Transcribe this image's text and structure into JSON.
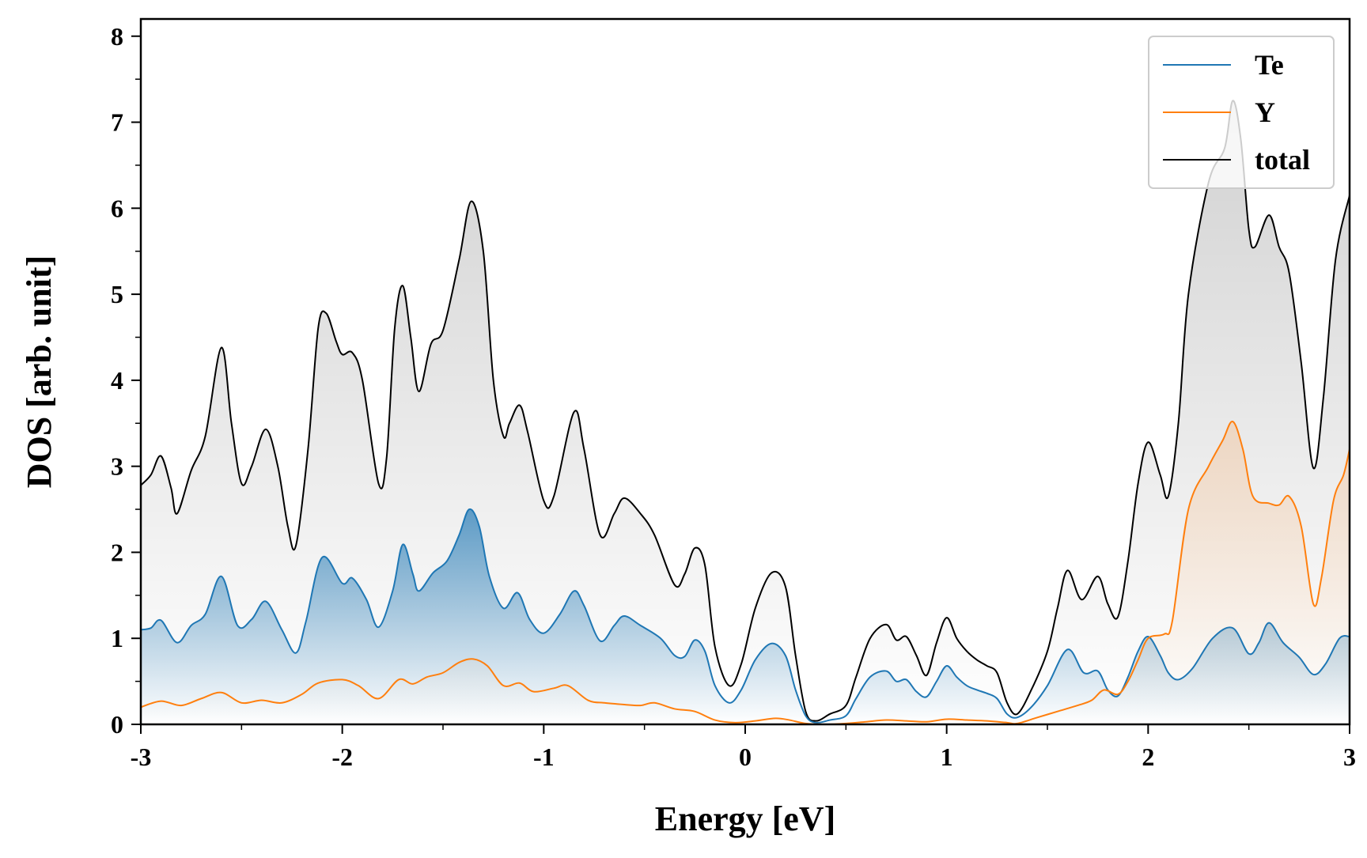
{
  "chart_data": {
    "type": "area",
    "xlabel": "Energy [eV]",
    "ylabel": "DOS [arb. unit]",
    "xlim": [
      -3,
      3
    ],
    "ylim": [
      0,
      8.2
    ],
    "x_ticks": [
      "-3",
      "-2",
      "-1",
      "0",
      "1",
      "2",
      "3"
    ],
    "y_ticks": [
      "0",
      "1",
      "2",
      "3",
      "4",
      "5",
      "6",
      "7",
      "8"
    ],
    "grid": false,
    "legend_position": "top-right",
    "series": [
      {
        "name": "Te",
        "color": "#1f77b4",
        "fill": "gradient",
        "points": [
          [
            -3.0,
            1.1
          ],
          [
            -2.95,
            1.12
          ],
          [
            -2.9,
            1.21
          ],
          [
            -2.82,
            0.95
          ],
          [
            -2.75,
            1.15
          ],
          [
            -2.68,
            1.28
          ],
          [
            -2.6,
            1.72
          ],
          [
            -2.52,
            1.15
          ],
          [
            -2.45,
            1.22
          ],
          [
            -2.38,
            1.43
          ],
          [
            -2.3,
            1.1
          ],
          [
            -2.23,
            0.83
          ],
          [
            -2.18,
            1.2
          ],
          [
            -2.1,
            1.94
          ],
          [
            -2.0,
            1.64
          ],
          [
            -1.95,
            1.7
          ],
          [
            -1.88,
            1.45
          ],
          [
            -1.82,
            1.13
          ],
          [
            -1.75,
            1.55
          ],
          [
            -1.7,
            2.09
          ],
          [
            -1.65,
            1.75
          ],
          [
            -1.62,
            1.55
          ],
          [
            -1.55,
            1.76
          ],
          [
            -1.48,
            1.9
          ],
          [
            -1.42,
            2.2
          ],
          [
            -1.37,
            2.5
          ],
          [
            -1.32,
            2.3
          ],
          [
            -1.27,
            1.72
          ],
          [
            -1.2,
            1.35
          ],
          [
            -1.13,
            1.53
          ],
          [
            -1.07,
            1.22
          ],
          [
            -1.0,
            1.06
          ],
          [
            -0.92,
            1.28
          ],
          [
            -0.85,
            1.55
          ],
          [
            -0.8,
            1.38
          ],
          [
            -0.72,
            0.97
          ],
          [
            -0.65,
            1.15
          ],
          [
            -0.6,
            1.26
          ],
          [
            -0.52,
            1.15
          ],
          [
            -0.42,
            1.0
          ],
          [
            -0.35,
            0.8
          ],
          [
            -0.3,
            0.79
          ],
          [
            -0.25,
            0.98
          ],
          [
            -0.2,
            0.85
          ],
          [
            -0.15,
            0.45
          ],
          [
            -0.08,
            0.25
          ],
          [
            -0.02,
            0.4
          ],
          [
            0.05,
            0.75
          ],
          [
            0.13,
            0.94
          ],
          [
            0.2,
            0.8
          ],
          [
            0.25,
            0.4
          ],
          [
            0.3,
            0.1
          ],
          [
            0.35,
            0.02
          ],
          [
            0.42,
            0.05
          ],
          [
            0.5,
            0.1
          ],
          [
            0.55,
            0.3
          ],
          [
            0.62,
            0.55
          ],
          [
            0.7,
            0.62
          ],
          [
            0.75,
            0.5
          ],
          [
            0.8,
            0.52
          ],
          [
            0.85,
            0.38
          ],
          [
            0.9,
            0.32
          ],
          [
            0.95,
            0.5
          ],
          [
            1.0,
            0.68
          ],
          [
            1.05,
            0.55
          ],
          [
            1.1,
            0.45
          ],
          [
            1.15,
            0.4
          ],
          [
            1.2,
            0.36
          ],
          [
            1.25,
            0.3
          ],
          [
            1.3,
            0.12
          ],
          [
            1.35,
            0.08
          ],
          [
            1.42,
            0.2
          ],
          [
            1.5,
            0.45
          ],
          [
            1.6,
            0.87
          ],
          [
            1.68,
            0.6
          ],
          [
            1.75,
            0.62
          ],
          [
            1.8,
            0.4
          ],
          [
            1.85,
            0.33
          ],
          [
            1.9,
            0.55
          ],
          [
            1.95,
            0.85
          ],
          [
            2.0,
            1.02
          ],
          [
            2.06,
            0.8
          ],
          [
            2.1,
            0.6
          ],
          [
            2.15,
            0.52
          ],
          [
            2.22,
            0.65
          ],
          [
            2.32,
            1.0
          ],
          [
            2.42,
            1.12
          ],
          [
            2.5,
            0.82
          ],
          [
            2.55,
            0.95
          ],
          [
            2.6,
            1.18
          ],
          [
            2.67,
            0.95
          ],
          [
            2.75,
            0.78
          ],
          [
            2.82,
            0.58
          ],
          [
            2.88,
            0.7
          ],
          [
            2.95,
            1.0
          ],
          [
            3.0,
            1.02
          ]
        ]
      },
      {
        "name": "Y",
        "color": "#ff7f0e",
        "fill": "gradient",
        "points": [
          [
            -3.0,
            0.2
          ],
          [
            -2.9,
            0.27
          ],
          [
            -2.8,
            0.22
          ],
          [
            -2.7,
            0.3
          ],
          [
            -2.6,
            0.37
          ],
          [
            -2.5,
            0.25
          ],
          [
            -2.4,
            0.28
          ],
          [
            -2.3,
            0.25
          ],
          [
            -2.2,
            0.35
          ],
          [
            -2.12,
            0.48
          ],
          [
            -2.0,
            0.52
          ],
          [
            -1.92,
            0.45
          ],
          [
            -1.82,
            0.3
          ],
          [
            -1.72,
            0.52
          ],
          [
            -1.65,
            0.47
          ],
          [
            -1.58,
            0.55
          ],
          [
            -1.5,
            0.6
          ],
          [
            -1.42,
            0.72
          ],
          [
            -1.35,
            0.76
          ],
          [
            -1.28,
            0.68
          ],
          [
            -1.2,
            0.45
          ],
          [
            -1.12,
            0.48
          ],
          [
            -1.05,
            0.38
          ],
          [
            -0.95,
            0.42
          ],
          [
            -0.88,
            0.45
          ],
          [
            -0.78,
            0.28
          ],
          [
            -0.7,
            0.25
          ],
          [
            -0.6,
            0.23
          ],
          [
            -0.52,
            0.22
          ],
          [
            -0.45,
            0.25
          ],
          [
            -0.35,
            0.18
          ],
          [
            -0.25,
            0.15
          ],
          [
            -0.15,
            0.05
          ],
          [
            -0.05,
            0.02
          ],
          [
            0.05,
            0.04
          ],
          [
            0.15,
            0.07
          ],
          [
            0.22,
            0.05
          ],
          [
            0.3,
            0.01
          ],
          [
            0.4,
            0.0
          ],
          [
            0.5,
            0.01
          ],
          [
            0.6,
            0.03
          ],
          [
            0.7,
            0.05
          ],
          [
            0.8,
            0.04
          ],
          [
            0.9,
            0.03
          ],
          [
            1.0,
            0.06
          ],
          [
            1.1,
            0.05
          ],
          [
            1.2,
            0.04
          ],
          [
            1.3,
            0.02
          ],
          [
            1.35,
            0.01
          ],
          [
            1.45,
            0.08
          ],
          [
            1.55,
            0.15
          ],
          [
            1.65,
            0.22
          ],
          [
            1.72,
            0.28
          ],
          [
            1.78,
            0.4
          ],
          [
            1.85,
            0.35
          ],
          [
            1.9,
            0.5
          ],
          [
            1.95,
            0.75
          ],
          [
            2.0,
            1.0
          ],
          [
            2.08,
            1.05
          ],
          [
            2.12,
            1.2
          ],
          [
            2.2,
            2.5
          ],
          [
            2.3,
            3.0
          ],
          [
            2.37,
            3.3
          ],
          [
            2.42,
            3.52
          ],
          [
            2.47,
            3.2
          ],
          [
            2.52,
            2.65
          ],
          [
            2.6,
            2.57
          ],
          [
            2.65,
            2.55
          ],
          [
            2.7,
            2.65
          ],
          [
            2.76,
            2.3
          ],
          [
            2.82,
            1.4
          ],
          [
            2.86,
            1.7
          ],
          [
            2.92,
            2.6
          ],
          [
            2.97,
            2.9
          ],
          [
            3.0,
            3.2
          ]
        ]
      },
      {
        "name": "total",
        "color": "#000000",
        "fill": "gradient",
        "points": [
          [
            -3.0,
            2.78
          ],
          [
            -2.95,
            2.9
          ],
          [
            -2.9,
            3.12
          ],
          [
            -2.85,
            2.75
          ],
          [
            -2.82,
            2.45
          ],
          [
            -2.75,
            2.95
          ],
          [
            -2.68,
            3.35
          ],
          [
            -2.6,
            4.38
          ],
          [
            -2.55,
            3.5
          ],
          [
            -2.5,
            2.8
          ],
          [
            -2.45,
            3.0
          ],
          [
            -2.38,
            3.43
          ],
          [
            -2.32,
            3.0
          ],
          [
            -2.27,
            2.3
          ],
          [
            -2.23,
            2.08
          ],
          [
            -2.17,
            3.2
          ],
          [
            -2.12,
            4.6
          ],
          [
            -2.08,
            4.78
          ],
          [
            -2.03,
            4.45
          ],
          [
            -2.0,
            4.3
          ],
          [
            -1.95,
            4.32
          ],
          [
            -1.9,
            4.0
          ],
          [
            -1.82,
            2.8
          ],
          [
            -1.78,
            3.1
          ],
          [
            -1.74,
            4.6
          ],
          [
            -1.7,
            5.1
          ],
          [
            -1.66,
            4.5
          ],
          [
            -1.62,
            3.87
          ],
          [
            -1.56,
            4.42
          ],
          [
            -1.5,
            4.58
          ],
          [
            -1.42,
            5.4
          ],
          [
            -1.36,
            6.08
          ],
          [
            -1.3,
            5.5
          ],
          [
            -1.25,
            4.0
          ],
          [
            -1.2,
            3.35
          ],
          [
            -1.17,
            3.5
          ],
          [
            -1.12,
            3.71
          ],
          [
            -1.08,
            3.4
          ],
          [
            -1.0,
            2.6
          ],
          [
            -0.95,
            2.65
          ],
          [
            -0.85,
            3.63
          ],
          [
            -0.8,
            3.2
          ],
          [
            -0.72,
            2.2
          ],
          [
            -0.65,
            2.45
          ],
          [
            -0.6,
            2.63
          ],
          [
            -0.52,
            2.45
          ],
          [
            -0.45,
            2.2
          ],
          [
            -0.35,
            1.62
          ],
          [
            -0.3,
            1.75
          ],
          [
            -0.25,
            2.05
          ],
          [
            -0.2,
            1.85
          ],
          [
            -0.15,
            0.9
          ],
          [
            -0.08,
            0.45
          ],
          [
            -0.02,
            0.7
          ],
          [
            0.05,
            1.35
          ],
          [
            0.13,
            1.76
          ],
          [
            0.2,
            1.6
          ],
          [
            0.25,
            0.8
          ],
          [
            0.3,
            0.15
          ],
          [
            0.35,
            0.04
          ],
          [
            0.42,
            0.12
          ],
          [
            0.5,
            0.22
          ],
          [
            0.55,
            0.55
          ],
          [
            0.62,
            1.0
          ],
          [
            0.7,
            1.16
          ],
          [
            0.75,
            0.98
          ],
          [
            0.8,
            1.02
          ],
          [
            0.85,
            0.8
          ],
          [
            0.9,
            0.57
          ],
          [
            0.95,
            0.95
          ],
          [
            1.0,
            1.24
          ],
          [
            1.05,
            1.0
          ],
          [
            1.1,
            0.85
          ],
          [
            1.15,
            0.75
          ],
          [
            1.2,
            0.68
          ],
          [
            1.25,
            0.6
          ],
          [
            1.3,
            0.25
          ],
          [
            1.35,
            0.12
          ],
          [
            1.42,
            0.4
          ],
          [
            1.5,
            0.85
          ],
          [
            1.55,
            1.35
          ],
          [
            1.6,
            1.79
          ],
          [
            1.67,
            1.45
          ],
          [
            1.75,
            1.72
          ],
          [
            1.8,
            1.4
          ],
          [
            1.85,
            1.25
          ],
          [
            1.9,
            1.9
          ],
          [
            1.95,
            2.8
          ],
          [
            2.0,
            3.28
          ],
          [
            2.06,
            2.9
          ],
          [
            2.1,
            2.65
          ],
          [
            2.15,
            3.5
          ],
          [
            2.2,
            5.0
          ],
          [
            2.3,
            6.3
          ],
          [
            2.38,
            6.7
          ],
          [
            2.42,
            7.25
          ],
          [
            2.46,
            6.8
          ],
          [
            2.5,
            5.75
          ],
          [
            2.53,
            5.55
          ],
          [
            2.6,
            5.92
          ],
          [
            2.65,
            5.55
          ],
          [
            2.7,
            5.25
          ],
          [
            2.76,
            4.2
          ],
          [
            2.82,
            2.98
          ],
          [
            2.87,
            3.8
          ],
          [
            2.93,
            5.4
          ],
          [
            3.0,
            6.15
          ]
        ]
      }
    ]
  }
}
